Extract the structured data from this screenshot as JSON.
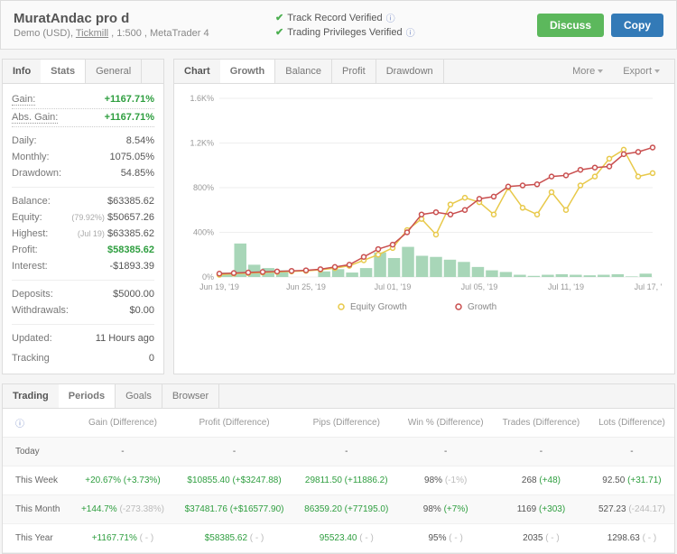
{
  "header": {
    "title": "MuratAndac pro d",
    "subtitle_prefix": "Demo (USD), ",
    "broker": "Tickmill",
    "subtitle_suffix": " , 1:500 , MetaTrader 4",
    "verified1": "Track Record Verified",
    "verified2": "Trading Privileges Verified",
    "discuss": "Discuss",
    "copy": "Copy"
  },
  "info": {
    "tab_label": "Info",
    "tab_stats": "Stats",
    "tab_general": "General",
    "gain_lbl": "Gain:",
    "gain_val": "+1167.71%",
    "absgain_lbl": "Abs. Gain:",
    "absgain_val": "+1167.71%",
    "daily_lbl": "Daily:",
    "daily_val": "8.54%",
    "monthly_lbl": "Monthly:",
    "monthly_val": "1075.05%",
    "drawdown_lbl": "Drawdown:",
    "drawdown_val": "54.85%",
    "balance_lbl": "Balance:",
    "balance_val": "$63385.62",
    "equity_lbl": "Equity:",
    "equity_sub": "(79.92%)",
    "equity_val": "$50657.26",
    "highest_lbl": "Highest:",
    "highest_sub": "(Jul 19)",
    "highest_val": "$63385.62",
    "profit_lbl": "Profit:",
    "profit_val": "$58385.62",
    "interest_lbl": "Interest:",
    "interest_val": "-$1893.39",
    "deposits_lbl": "Deposits:",
    "deposits_val": "$5000.00",
    "withdrawals_lbl": "Withdrawals:",
    "withdrawals_val": "$0.00",
    "updated_lbl": "Updated:",
    "updated_val": "11 Hours ago",
    "tracking_lbl": "Tracking",
    "tracking_val": "0"
  },
  "chart": {
    "tab_label": "Chart",
    "tab_growth": "Growth",
    "tab_balance": "Balance",
    "tab_profit": "Profit",
    "tab_drawdown": "Drawdown",
    "more": "More",
    "export": "Export",
    "yticks": [
      "1.6K%",
      "1.2K%",
      "800%",
      "400%",
      "0%"
    ],
    "xticks": [
      "Jun 19, '19",
      "Jun 25, '19",
      "Jul 01, '19",
      "Jul 05, '19",
      "Jul 11, '19",
      "Jul 17, '19"
    ],
    "legend_equity": "Equity Growth",
    "legend_growth": "Growth",
    "colors": {
      "growth_line": "#c94f4f",
      "equity_line": "#e8c94a",
      "bar_fill": "#a8d6b8",
      "grid": "#eeeeee",
      "axis_text": "#999999"
    },
    "bars": [
      40,
      300,
      110,
      80,
      60,
      0,
      0,
      50,
      70,
      40,
      80,
      220,
      170,
      270,
      190,
      180,
      155,
      135,
      90,
      60,
      45,
      20,
      10,
      20,
      25,
      20,
      15,
      20,
      25,
      5,
      30
    ],
    "growth_pts": [
      30,
      35,
      40,
      45,
      50,
      55,
      60,
      70,
      90,
      110,
      180,
      250,
      290,
      400,
      560,
      580,
      560,
      600,
      700,
      720,
      810,
      820,
      830,
      900,
      910,
      960,
      980,
      990,
      1100,
      1120,
      1160
    ],
    "equity_pts": [
      20,
      30,
      35,
      40,
      45,
      50,
      55,
      65,
      80,
      100,
      150,
      200,
      260,
      420,
      520,
      380,
      650,
      710,
      670,
      560,
      800,
      620,
      560,
      760,
      600,
      820,
      900,
      1060,
      1140,
      900,
      930
    ]
  },
  "trading": {
    "tab_label": "Trading",
    "tab_periods": "Periods",
    "tab_goals": "Goals",
    "tab_browser": "Browser",
    "cols": [
      "",
      "Gain (Difference)",
      "Profit (Difference)",
      "Pips (Difference)",
      "Win % (Difference)",
      "Trades (Difference)",
      "Lots (Difference)"
    ],
    "rows": [
      {
        "period": "Today",
        "gain": "-",
        "profit": "-",
        "pips": "-",
        "win": "-",
        "trades": "-",
        "lots": "-"
      },
      {
        "period": "This Week",
        "gain": "+20.67%",
        "gain_d": "(+3.73%)",
        "profit": "$10855.40",
        "profit_d": "(+$3247.88)",
        "pips": "29811.50",
        "pips_d": "(+11886.2)",
        "win": "98%",
        "win_d": "(-1%)",
        "trades": "268",
        "trades_d": "(+48)",
        "lots": "92.50",
        "lots_d": "(+31.71)"
      },
      {
        "period": "This Month",
        "gain": "+144.7%",
        "gain_d": "(-273.38%)",
        "profit": "$37481.76",
        "profit_d": "(+$16577.90)",
        "pips": "86359.20",
        "pips_d": "(+77195.0)",
        "win": "98%",
        "win_d": "(+7%)",
        "trades": "1169",
        "trades_d": "(+303)",
        "lots": "527.23",
        "lots_d": "(-244.17)"
      },
      {
        "period": "This Year",
        "gain": "+1167.71%",
        "gain_d": "( - )",
        "profit": "$58385.62",
        "profit_d": "( - )",
        "pips": "95523.40",
        "pips_d": "( - )",
        "win": "95%",
        "win_d": "( - )",
        "trades": "2035",
        "trades_d": "( - )",
        "lots": "1298.63",
        "lots_d": "( - )"
      }
    ]
  }
}
